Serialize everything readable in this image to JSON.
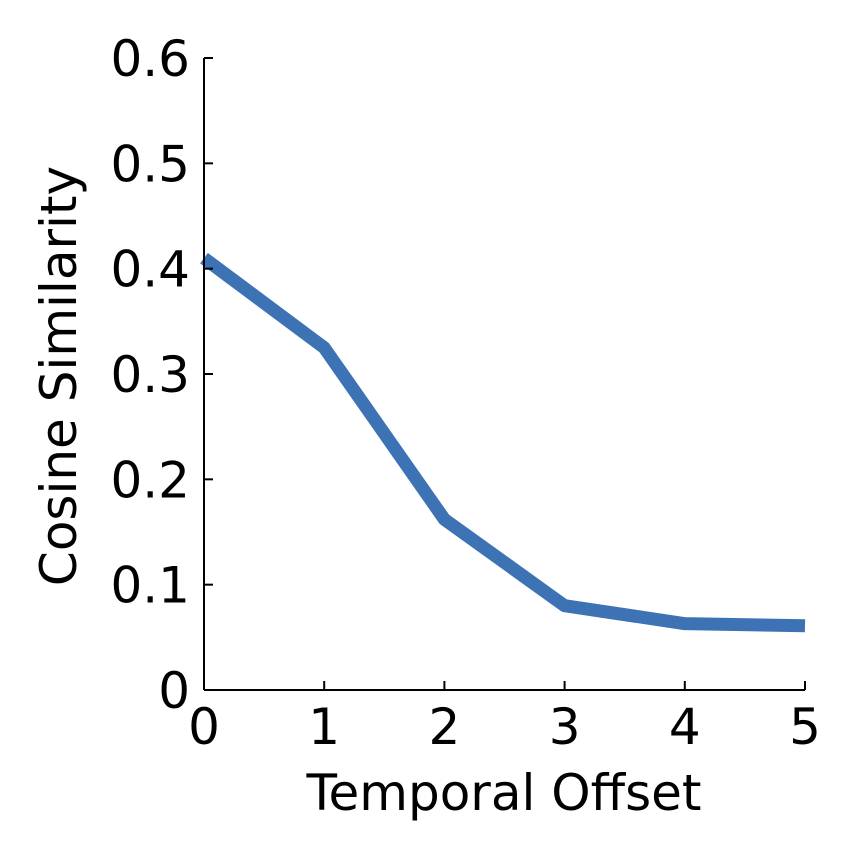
{
  "chart_data": {
    "type": "line",
    "title": "",
    "xlabel": "Temporal Offset",
    "ylabel": "Cosine Similarity",
    "x": [
      0,
      1,
      2,
      3,
      4,
      5
    ],
    "series": [
      {
        "values": [
          0.41,
          0.325,
          0.162,
          0.08,
          0.063,
          0.061
        ]
      }
    ],
    "xlim": [
      0,
      5
    ],
    "ylim": [
      0,
      0.6
    ],
    "xticks": [
      "0",
      "1",
      "2",
      "3",
      "4",
      "5"
    ],
    "yticks": [
      "0",
      "0.1",
      "0.2",
      "0.3",
      "0.4",
      "0.5",
      "0.6"
    ],
    "grid": false,
    "line_color": "#3d73b4",
    "axis_color": "#000000"
  }
}
